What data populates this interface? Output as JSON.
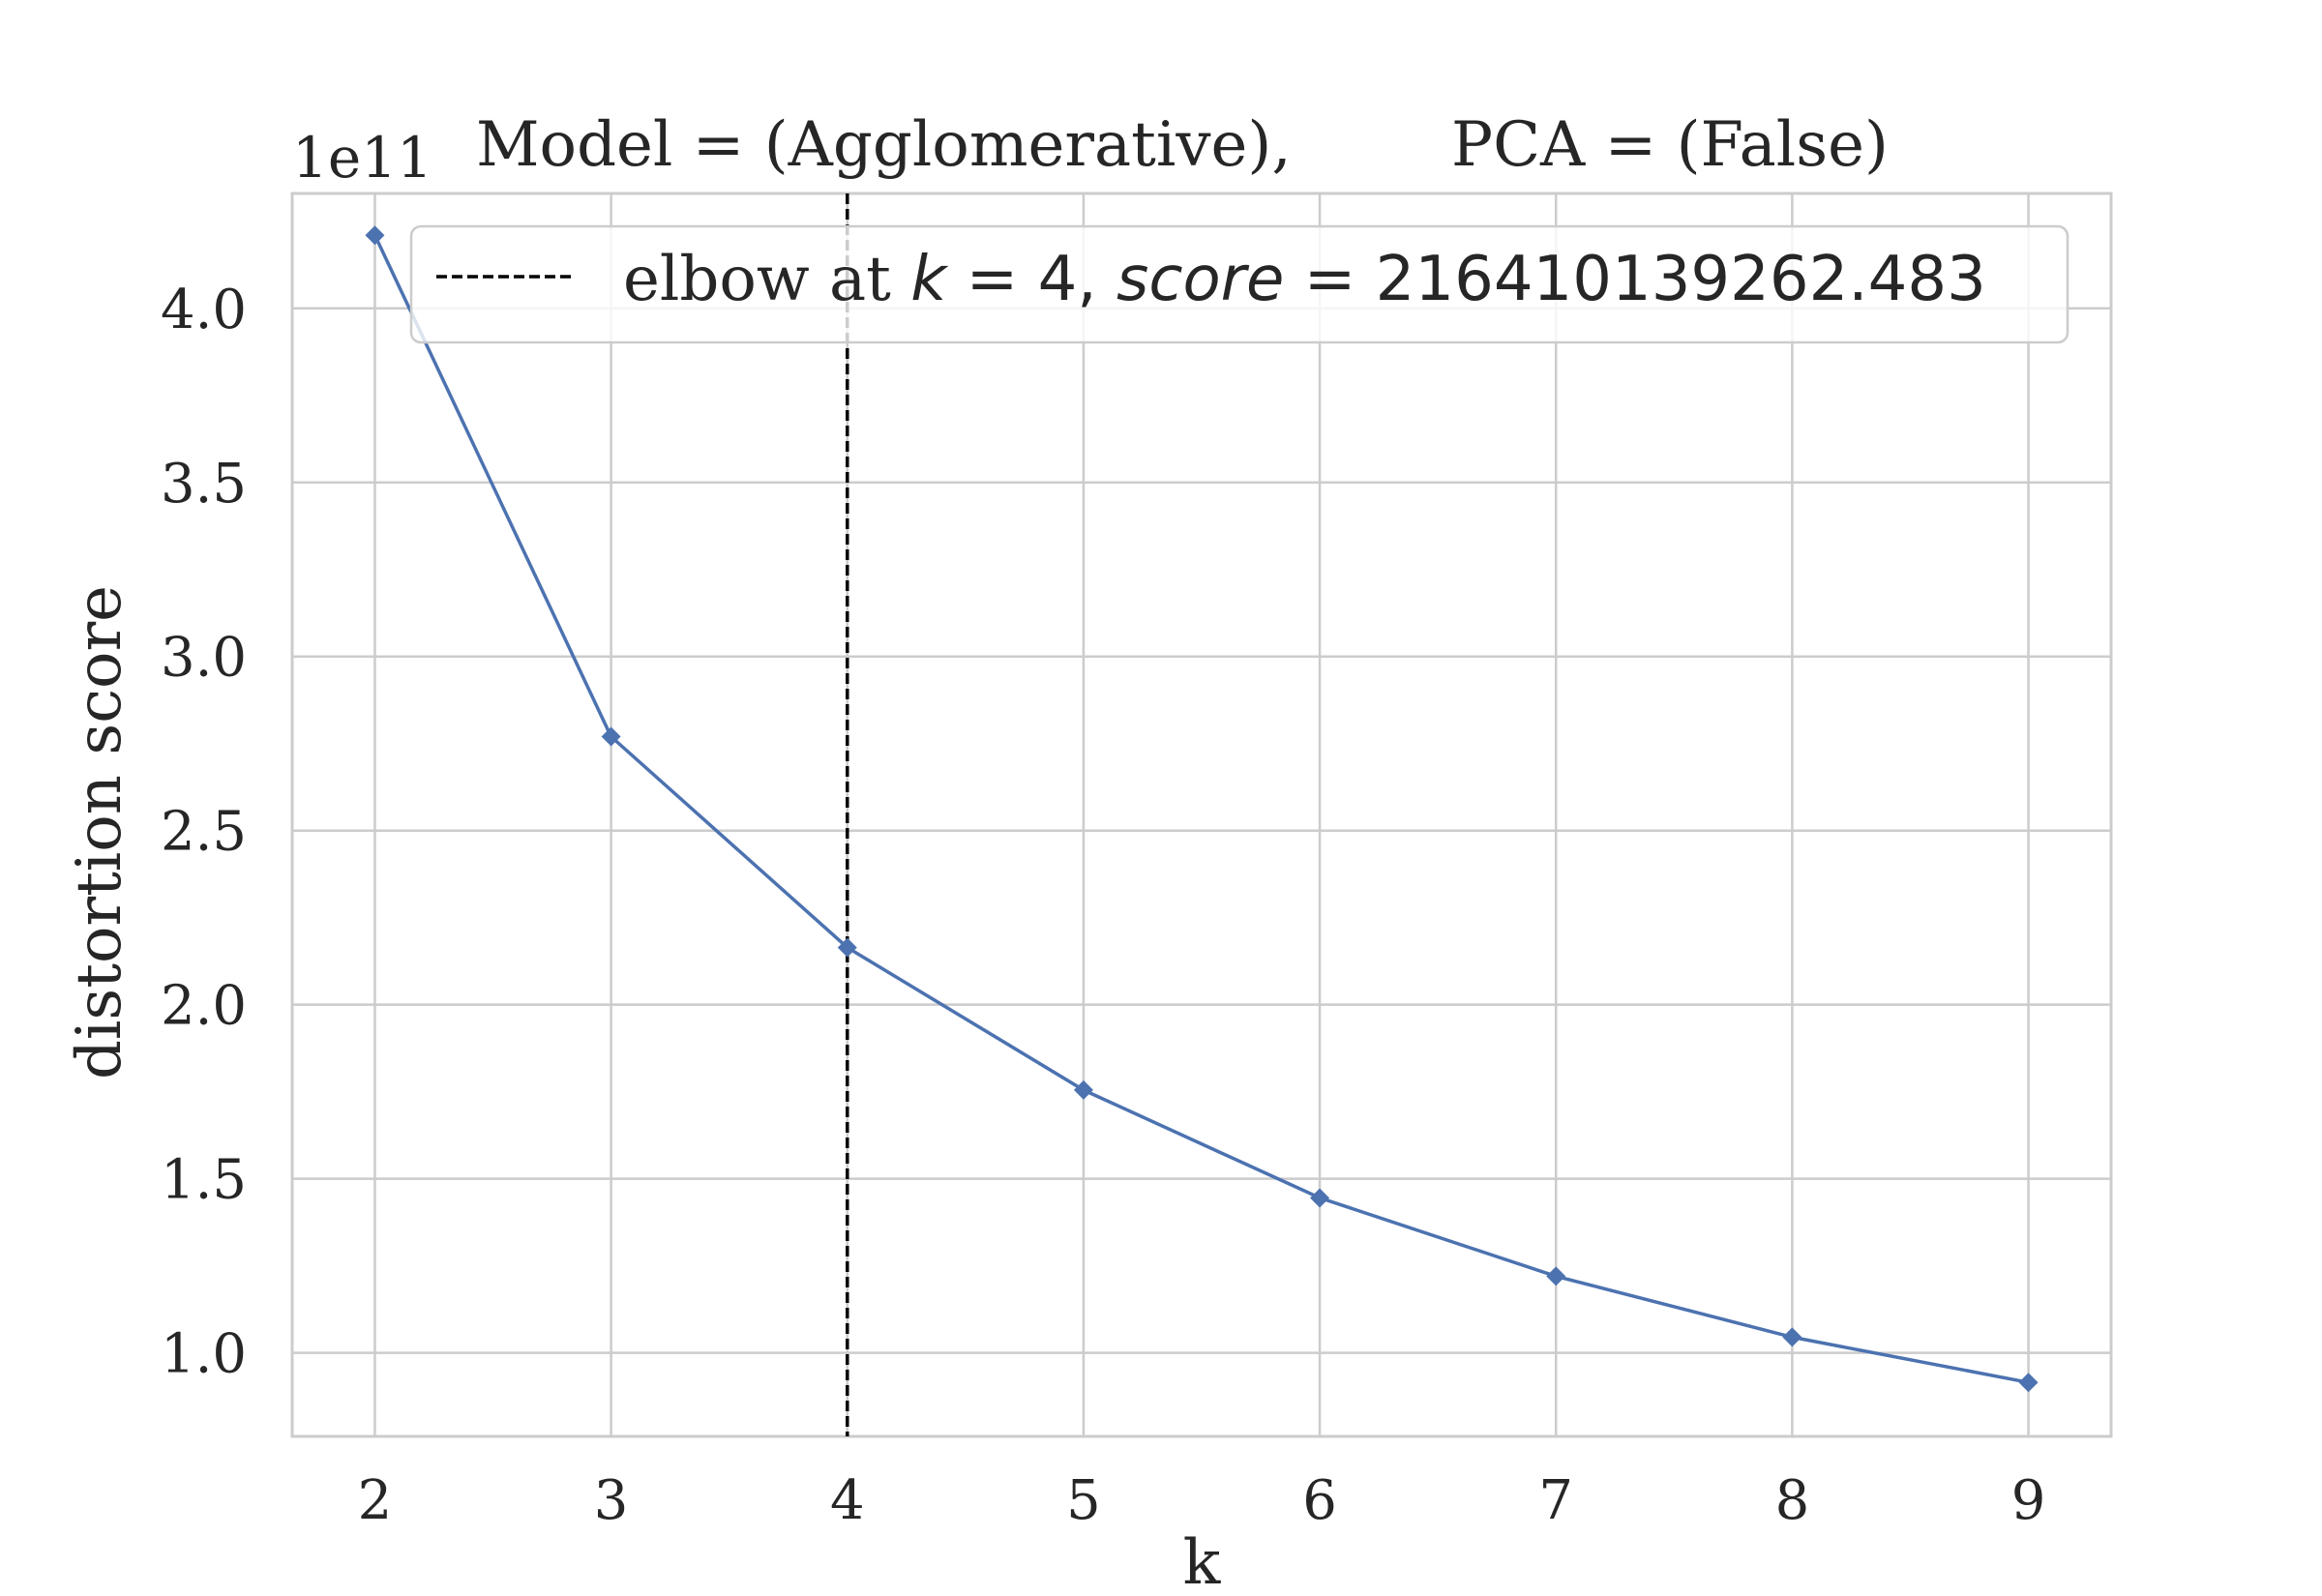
{
  "chart_data": {
    "type": "line",
    "title_left": "Model = (Agglomerative),",
    "title_right": "PCA = (False)",
    "xlabel": "k",
    "ylabel": "distortion score",
    "y_offset_label": "1e11",
    "x": [
      2,
      3,
      4,
      5,
      6,
      7,
      8,
      9
    ],
    "y": [
      4.21,
      2.77,
      2.164,
      1.755,
      1.445,
      1.22,
      1.045,
      0.915
    ],
    "xlim": [
      1.65,
      9.35
    ],
    "ylim": [
      0.76,
      4.33
    ],
    "xticks": [
      "2",
      "3",
      "4",
      "5",
      "6",
      "7",
      "8",
      "9"
    ],
    "yticks": [
      "1.0",
      "1.5",
      "2.0",
      "2.5",
      "3.0",
      "3.5",
      "4.0"
    ],
    "elbow": {
      "k": 4,
      "legend_prefix": "elbow at ",
      "k_var": "k",
      "k_value": "4",
      "score_var": "score",
      "score_value": "216410139262.483"
    },
    "grid": true,
    "legend_position": "top-right",
    "colors": {
      "line": "#4c72b0",
      "elbow": "#000000",
      "grid": "#cccccc",
      "text": "#262626"
    }
  }
}
